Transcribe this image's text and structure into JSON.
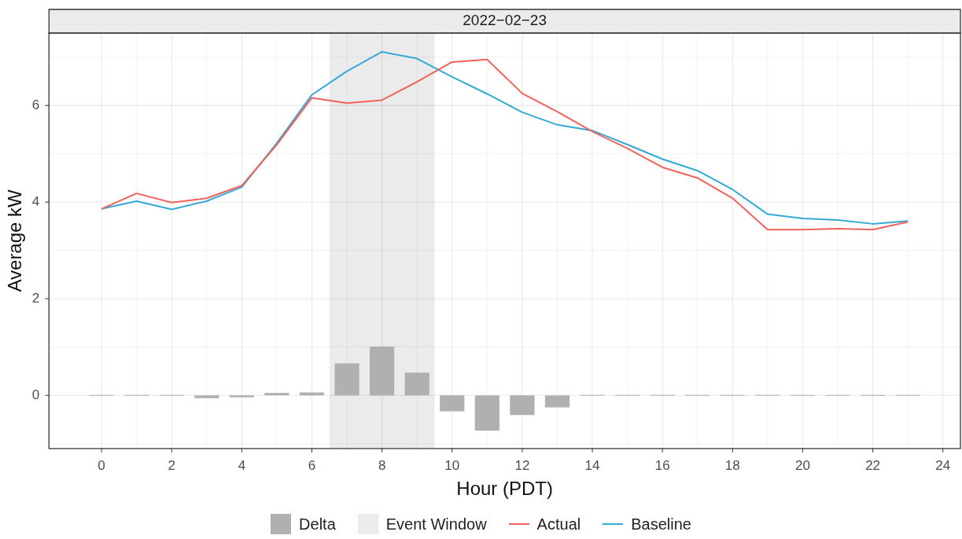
{
  "chart_data": {
    "type": "line",
    "title": "2022−02−23",
    "xlabel": "Hour (PDT)",
    "ylabel": "Average kW",
    "x": [
      0,
      1,
      2,
      3,
      4,
      5,
      6,
      7,
      8,
      9,
      10,
      11,
      12,
      13,
      14,
      15,
      16,
      17,
      18,
      19,
      20,
      21,
      22,
      23
    ],
    "series": [
      {
        "name": "Delta",
        "type": "bar",
        "color": "#b0b0b0",
        "values": [
          0,
          0,
          0,
          -0.06,
          -0.04,
          0.05,
          0.06,
          0.66,
          1.01,
          0.47,
          -0.33,
          -0.73,
          -0.41,
          -0.25,
          0,
          0,
          0,
          0,
          0,
          0,
          0,
          0,
          0,
          0
        ]
      },
      {
        "name": "Actual",
        "color": "#f0625a",
        "values": [
          3.86,
          4.18,
          3.99,
          4.08,
          4.34,
          5.19,
          6.16,
          6.05,
          6.11,
          6.49,
          6.9,
          6.95,
          6.25,
          5.87,
          5.46,
          5.11,
          4.72,
          4.5,
          4.08,
          3.43,
          3.43,
          3.45,
          3.43,
          3.59
        ]
      },
      {
        "name": "Baseline",
        "color": "#33a9d6",
        "values": [
          3.86,
          4.02,
          3.85,
          4.02,
          4.31,
          5.22,
          6.22,
          6.71,
          7.11,
          6.97,
          6.59,
          6.24,
          5.86,
          5.6,
          5.48,
          5.19,
          4.89,
          4.65,
          4.26,
          3.75,
          3.66,
          3.63,
          3.55,
          3.61
        ]
      }
    ],
    "bands": [
      {
        "axis": "x",
        "from": 6.5,
        "to": 9.5,
        "label": "Event Window",
        "color": "#ebebeb"
      }
    ],
    "xlim": [
      -1.5,
      24.5
    ],
    "xticks": [
      0,
      2,
      4,
      6,
      8,
      10,
      12,
      14,
      16,
      18,
      20,
      22,
      24
    ],
    "ylim": [
      -1.1,
      7.5
    ],
    "yticks": [
      0,
      2,
      4,
      6
    ],
    "grid": true,
    "legend": "bottom"
  }
}
